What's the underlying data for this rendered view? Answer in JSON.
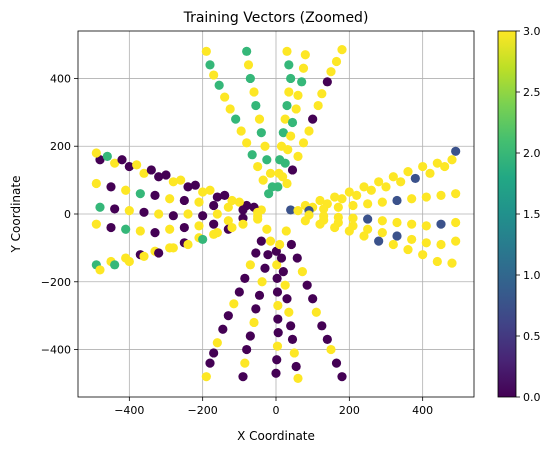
{
  "chart_data": {
    "type": "scatter",
    "title": "Training Vectors (Zoomed)",
    "xlabel": "X Coordinate",
    "ylabel": "Y Coordinate",
    "xlim": [
      -540,
      540
    ],
    "ylim": [
      -540,
      540
    ],
    "xticks": [
      -400,
      -200,
      0,
      200,
      400
    ],
    "xtick_labels": [
      "−400",
      "−200",
      "0",
      "200",
      "400"
    ],
    "yticks": [
      -400,
      -200,
      0,
      200,
      400
    ],
    "ytick_labels": [
      "−400",
      "−200",
      "0",
      "200",
      "400"
    ],
    "grid": true,
    "colormap": "viridis",
    "colorbar": {
      "range": [
        0,
        3
      ],
      "ticks": [
        0,
        0.5,
        1,
        1.5,
        2,
        2.5,
        3
      ],
      "tick_labels": [
        "0.0",
        "0.5",
        "1.0",
        "1.5",
        "2.0",
        "2.5",
        "3.0"
      ]
    },
    "colors": {
      "c0": "#440154",
      "c1": "#3b528b",
      "c2": "#21918c",
      "c25": "#35b779",
      "c3": "#fde725"
    },
    "points": [
      {
        "x": -480,
        "y": 160,
        "c": 0
      },
      {
        "x": -440,
        "y": 150,
        "c": 3
      },
      {
        "x": -400,
        "y": 140,
        "c": 0
      },
      {
        "x": -360,
        "y": 120,
        "c": 3
      },
      {
        "x": -320,
        "y": 110,
        "c": 0
      },
      {
        "x": -280,
        "y": 95,
        "c": 3
      },
      {
        "x": -240,
        "y": 80,
        "c": 0
      },
      {
        "x": -200,
        "y": 65,
        "c": 3
      },
      {
        "x": -160,
        "y": 50,
        "c": 0
      },
      {
        "x": -120,
        "y": 40,
        "c": 3
      },
      {
        "x": -80,
        "y": 25,
        "c": 0
      },
      {
        "x": -40,
        "y": 12,
        "c": 3
      },
      {
        "x": -490,
        "y": 180,
        "c": 3
      },
      {
        "x": -460,
        "y": 170,
        "c": 2.5
      },
      {
        "x": -420,
        "y": 160,
        "c": 0
      },
      {
        "x": -380,
        "y": 145,
        "c": 3
      },
      {
        "x": -340,
        "y": 130,
        "c": 0
      },
      {
        "x": -300,
        "y": 115,
        "c": 0
      },
      {
        "x": -260,
        "y": 100,
        "c": 3
      },
      {
        "x": -220,
        "y": 85,
        "c": 0
      },
      {
        "x": -180,
        "y": 70,
        "c": 3
      },
      {
        "x": -140,
        "y": 55,
        "c": 0
      },
      {
        "x": -100,
        "y": 35,
        "c": 3
      },
      {
        "x": -60,
        "y": 20,
        "c": 0
      },
      {
        "x": -490,
        "y": 90,
        "c": 3
      },
      {
        "x": -450,
        "y": 80,
        "c": 0
      },
      {
        "x": -410,
        "y": 70,
        "c": 3
      },
      {
        "x": -370,
        "y": 60,
        "c": 2.5
      },
      {
        "x": -330,
        "y": 55,
        "c": 0
      },
      {
        "x": -290,
        "y": 45,
        "c": 3
      },
      {
        "x": -250,
        "y": 40,
        "c": 0
      },
      {
        "x": -210,
        "y": 35,
        "c": 3
      },
      {
        "x": -170,
        "y": 25,
        "c": 0
      },
      {
        "x": -130,
        "y": 20,
        "c": 3
      },
      {
        "x": -90,
        "y": 12,
        "c": 0
      },
      {
        "x": -50,
        "y": 5,
        "c": 3
      },
      {
        "x": -480,
        "y": 20,
        "c": 2.5
      },
      {
        "x": -440,
        "y": 15,
        "c": 0
      },
      {
        "x": -400,
        "y": 10,
        "c": 3
      },
      {
        "x": -360,
        "y": 5,
        "c": 0
      },
      {
        "x": -320,
        "y": 0,
        "c": 3
      },
      {
        "x": -280,
        "y": -5,
        "c": 0
      },
      {
        "x": -240,
        "y": 0,
        "c": 3
      },
      {
        "x": -200,
        "y": -5,
        "c": 0
      },
      {
        "x": -160,
        "y": 0,
        "c": 3
      },
      {
        "x": -490,
        "y": -30,
        "c": 3
      },
      {
        "x": -450,
        "y": -40,
        "c": 0
      },
      {
        "x": -410,
        "y": -45,
        "c": 2.5
      },
      {
        "x": -370,
        "y": -50,
        "c": 3
      },
      {
        "x": -330,
        "y": -55,
        "c": 0
      },
      {
        "x": -290,
        "y": -45,
        "c": 3
      },
      {
        "x": -250,
        "y": -40,
        "c": 0
      },
      {
        "x": -210,
        "y": -35,
        "c": 3
      },
      {
        "x": -170,
        "y": -30,
        "c": 0
      },
      {
        "x": -130,
        "y": -20,
        "c": 3
      },
      {
        "x": -90,
        "y": -12,
        "c": 0
      },
      {
        "x": -50,
        "y": -6,
        "c": 3
      },
      {
        "x": -490,
        "y": -150,
        "c": 2.5
      },
      {
        "x": -450,
        "y": -140,
        "c": 3
      },
      {
        "x": -410,
        "y": -130,
        "c": 3
      },
      {
        "x": -370,
        "y": -120,
        "c": 0
      },
      {
        "x": -330,
        "y": -110,
        "c": 3
      },
      {
        "x": -290,
        "y": -100,
        "c": 3
      },
      {
        "x": -250,
        "y": -85,
        "c": 0
      },
      {
        "x": -210,
        "y": -70,
        "c": 3
      },
      {
        "x": -170,
        "y": -60,
        "c": 3
      },
      {
        "x": -130,
        "y": -45,
        "c": 0
      },
      {
        "x": -90,
        "y": -30,
        "c": 3
      },
      {
        "x": -50,
        "y": -15,
        "c": 3
      },
      {
        "x": -480,
        "y": -165,
        "c": 3
      },
      {
        "x": -440,
        "y": -150,
        "c": 2.5
      },
      {
        "x": -400,
        "y": -140,
        "c": 3
      },
      {
        "x": -360,
        "y": -125,
        "c": 3
      },
      {
        "x": -320,
        "y": -115,
        "c": 0
      },
      {
        "x": -280,
        "y": -100,
        "c": 3
      },
      {
        "x": -240,
        "y": -90,
        "c": 3
      },
      {
        "x": -200,
        "y": -75,
        "c": 2.5
      },
      {
        "x": -160,
        "y": -55,
        "c": 3
      },
      {
        "x": -120,
        "y": -40,
        "c": 3
      },
      {
        "x": 480,
        "y": 160,
        "c": 3
      },
      {
        "x": 440,
        "y": 150,
        "c": 3
      },
      {
        "x": 400,
        "y": 140,
        "c": 3
      },
      {
        "x": 360,
        "y": 125,
        "c": 3
      },
      {
        "x": 320,
        "y": 110,
        "c": 3
      },
      {
        "x": 280,
        "y": 95,
        "c": 3
      },
      {
        "x": 240,
        "y": 80,
        "c": 3
      },
      {
        "x": 200,
        "y": 65,
        "c": 3
      },
      {
        "x": 160,
        "y": 50,
        "c": 3
      },
      {
        "x": 120,
        "y": 40,
        "c": 3
      },
      {
        "x": 80,
        "y": 25,
        "c": 3
      },
      {
        "x": 40,
        "y": 12,
        "c": 1
      },
      {
        "x": 490,
        "y": 185,
        "c": 1
      },
      {
        "x": 460,
        "y": 140,
        "c": 3
      },
      {
        "x": 420,
        "y": 120,
        "c": 3
      },
      {
        "x": 380,
        "y": 105,
        "c": 1
      },
      {
        "x": 340,
        "y": 95,
        "c": 3
      },
      {
        "x": 300,
        "y": 80,
        "c": 3
      },
      {
        "x": 260,
        "y": 70,
        "c": 3
      },
      {
        "x": 220,
        "y": 55,
        "c": 3
      },
      {
        "x": 180,
        "y": 45,
        "c": 3
      },
      {
        "x": 140,
        "y": 30,
        "c": 3
      },
      {
        "x": 100,
        "y": 20,
        "c": 3
      },
      {
        "x": 60,
        "y": 10,
        "c": 3
      },
      {
        "x": 490,
        "y": 60,
        "c": 3
      },
      {
        "x": 450,
        "y": 55,
        "c": 3
      },
      {
        "x": 410,
        "y": 50,
        "c": 3
      },
      {
        "x": 370,
        "y": 45,
        "c": 3
      },
      {
        "x": 330,
        "y": 40,
        "c": 1
      },
      {
        "x": 290,
        "y": 35,
        "c": 3
      },
      {
        "x": 250,
        "y": 30,
        "c": 3
      },
      {
        "x": 210,
        "y": 25,
        "c": 3
      },
      {
        "x": 170,
        "y": 20,
        "c": 3
      },
      {
        "x": 130,
        "y": 15,
        "c": 3
      },
      {
        "x": 90,
        "y": 10,
        "c": 1
      },
      {
        "x": 490,
        "y": -25,
        "c": 3
      },
      {
        "x": 450,
        "y": -30,
        "c": 1
      },
      {
        "x": 410,
        "y": -35,
        "c": 3
      },
      {
        "x": 370,
        "y": -30,
        "c": 3
      },
      {
        "x": 330,
        "y": -25,
        "c": 3
      },
      {
        "x": 290,
        "y": -20,
        "c": 3
      },
      {
        "x": 250,
        "y": -15,
        "c": 1
      },
      {
        "x": 210,
        "y": -12,
        "c": 3
      },
      {
        "x": 170,
        "y": -10,
        "c": 3
      },
      {
        "x": 130,
        "y": -6,
        "c": 3
      },
      {
        "x": 90,
        "y": -3,
        "c": 3
      },
      {
        "x": 490,
        "y": -80,
        "c": 3
      },
      {
        "x": 450,
        "y": -90,
        "c": 3
      },
      {
        "x": 410,
        "y": -85,
        "c": 3
      },
      {
        "x": 370,
        "y": -75,
        "c": 3
      },
      {
        "x": 330,
        "y": -65,
        "c": 1
      },
      {
        "x": 290,
        "y": -55,
        "c": 3
      },
      {
        "x": 250,
        "y": -45,
        "c": 3
      },
      {
        "x": 210,
        "y": -35,
        "c": 3
      },
      {
        "x": 170,
        "y": -25,
        "c": 3
      },
      {
        "x": 130,
        "y": -18,
        "c": 3
      },
      {
        "x": 480,
        "y": -145,
        "c": 3
      },
      {
        "x": 440,
        "y": -140,
        "c": 3
      },
      {
        "x": 400,
        "y": -120,
        "c": 3
      },
      {
        "x": 360,
        "y": -105,
        "c": 3
      },
      {
        "x": 320,
        "y": -90,
        "c": 3
      },
      {
        "x": 280,
        "y": -80,
        "c": 1
      },
      {
        "x": 240,
        "y": -65,
        "c": 3
      },
      {
        "x": 200,
        "y": -50,
        "c": 3
      },
      {
        "x": 160,
        "y": -40,
        "c": 3
      },
      {
        "x": 120,
        "y": -30,
        "c": 3
      },
      {
        "x": 80,
        "y": -20,
        "c": 3
      },
      {
        "x": -190,
        "y": 480,
        "c": 3
      },
      {
        "x": -180,
        "y": 440,
        "c": 2.5
      },
      {
        "x": -170,
        "y": 410,
        "c": 3
      },
      {
        "x": -155,
        "y": 380,
        "c": 2.5
      },
      {
        "x": -140,
        "y": 345,
        "c": 3
      },
      {
        "x": -125,
        "y": 310,
        "c": 3
      },
      {
        "x": -110,
        "y": 280,
        "c": 2.5
      },
      {
        "x": -95,
        "y": 245,
        "c": 3
      },
      {
        "x": -80,
        "y": 210,
        "c": 3
      },
      {
        "x": -65,
        "y": 175,
        "c": 2.5
      },
      {
        "x": -50,
        "y": 140,
        "c": 3
      },
      {
        "x": -35,
        "y": 100,
        "c": 3
      },
      {
        "x": -20,
        "y": 60,
        "c": 2.5
      },
      {
        "x": -80,
        "y": 480,
        "c": 2.5
      },
      {
        "x": -75,
        "y": 440,
        "c": 3
      },
      {
        "x": -70,
        "y": 400,
        "c": 2.5
      },
      {
        "x": -60,
        "y": 360,
        "c": 3
      },
      {
        "x": -55,
        "y": 320,
        "c": 2.5
      },
      {
        "x": -45,
        "y": 280,
        "c": 3
      },
      {
        "x": -40,
        "y": 240,
        "c": 2.5
      },
      {
        "x": -30,
        "y": 200,
        "c": 3
      },
      {
        "x": -25,
        "y": 160,
        "c": 2.5
      },
      {
        "x": -15,
        "y": 120,
        "c": 3
      },
      {
        "x": -10,
        "y": 80,
        "c": 2.5
      },
      {
        "x": 30,
        "y": 480,
        "c": 3
      },
      {
        "x": 35,
        "y": 440,
        "c": 2.5
      },
      {
        "x": 40,
        "y": 400,
        "c": 2.5
      },
      {
        "x": 35,
        "y": 360,
        "c": 3
      },
      {
        "x": 30,
        "y": 320,
        "c": 2.5
      },
      {
        "x": 25,
        "y": 280,
        "c": 3
      },
      {
        "x": 20,
        "y": 240,
        "c": 2.5
      },
      {
        "x": 15,
        "y": 200,
        "c": 3
      },
      {
        "x": 10,
        "y": 160,
        "c": 2.5
      },
      {
        "x": 8,
        "y": 120,
        "c": 3
      },
      {
        "x": 5,
        "y": 80,
        "c": 2.5
      },
      {
        "x": 80,
        "y": 470,
        "c": 3
      },
      {
        "x": 75,
        "y": 430,
        "c": 3
      },
      {
        "x": 70,
        "y": 390,
        "c": 2.5
      },
      {
        "x": 60,
        "y": 350,
        "c": 3
      },
      {
        "x": 55,
        "y": 310,
        "c": 3
      },
      {
        "x": 45,
        "y": 270,
        "c": 2.5
      },
      {
        "x": 40,
        "y": 230,
        "c": 3
      },
      {
        "x": 32,
        "y": 190,
        "c": 3
      },
      {
        "x": 25,
        "y": 150,
        "c": 2.5
      },
      {
        "x": 18,
        "y": 110,
        "c": 3
      },
      {
        "x": 180,
        "y": 485,
        "c": 3
      },
      {
        "x": 165,
        "y": 450,
        "c": 3
      },
      {
        "x": 150,
        "y": 420,
        "c": 3
      },
      {
        "x": 140,
        "y": 390,
        "c": 0
      },
      {
        "x": 125,
        "y": 355,
        "c": 3
      },
      {
        "x": 115,
        "y": 320,
        "c": 3
      },
      {
        "x": 100,
        "y": 280,
        "c": 0
      },
      {
        "x": 90,
        "y": 245,
        "c": 3
      },
      {
        "x": 75,
        "y": 210,
        "c": 3
      },
      {
        "x": 60,
        "y": 170,
        "c": 3
      },
      {
        "x": 45,
        "y": 130,
        "c": 0
      },
      {
        "x": 30,
        "y": 90,
        "c": 3
      },
      {
        "x": -190,
        "y": -480,
        "c": 3
      },
      {
        "x": -180,
        "y": -440,
        "c": 0
      },
      {
        "x": -170,
        "y": -410,
        "c": 0
      },
      {
        "x": -160,
        "y": -380,
        "c": 3
      },
      {
        "x": -145,
        "y": -340,
        "c": 0
      },
      {
        "x": -130,
        "y": -300,
        "c": 0
      },
      {
        "x": -115,
        "y": -265,
        "c": 3
      },
      {
        "x": -100,
        "y": -230,
        "c": 0
      },
      {
        "x": -85,
        "y": -190,
        "c": 0
      },
      {
        "x": -70,
        "y": -150,
        "c": 3
      },
      {
        "x": -55,
        "y": -115,
        "c": 0
      },
      {
        "x": -40,
        "y": -80,
        "c": 0
      },
      {
        "x": -25,
        "y": -45,
        "c": 3
      },
      {
        "x": -90,
        "y": -480,
        "c": 0
      },
      {
        "x": -85,
        "y": -440,
        "c": 3
      },
      {
        "x": -80,
        "y": -400,
        "c": 0
      },
      {
        "x": -70,
        "y": -360,
        "c": 0
      },
      {
        "x": -60,
        "y": -320,
        "c": 3
      },
      {
        "x": -55,
        "y": -280,
        "c": 0
      },
      {
        "x": -45,
        "y": -240,
        "c": 0
      },
      {
        "x": -38,
        "y": -200,
        "c": 3
      },
      {
        "x": -30,
        "y": -160,
        "c": 0
      },
      {
        "x": -22,
        "y": -120,
        "c": 0
      },
      {
        "x": -15,
        "y": -80,
        "c": 3
      },
      {
        "x": 0,
        "y": -470,
        "c": 0
      },
      {
        "x": 2,
        "y": -430,
        "c": 0
      },
      {
        "x": 4,
        "y": -390,
        "c": 3
      },
      {
        "x": 6,
        "y": -350,
        "c": 0
      },
      {
        "x": 5,
        "y": -310,
        "c": 0
      },
      {
        "x": 5,
        "y": -270,
        "c": 3
      },
      {
        "x": 4,
        "y": -230,
        "c": 0
      },
      {
        "x": 3,
        "y": -190,
        "c": 0
      },
      {
        "x": 2,
        "y": -150,
        "c": 3
      },
      {
        "x": 1,
        "y": -110,
        "c": 0
      },
      {
        "x": 60,
        "y": -485,
        "c": 3
      },
      {
        "x": 55,
        "y": -450,
        "c": 0
      },
      {
        "x": 50,
        "y": -410,
        "c": 3
      },
      {
        "x": 45,
        "y": -370,
        "c": 0
      },
      {
        "x": 40,
        "y": -330,
        "c": 0
      },
      {
        "x": 35,
        "y": -290,
        "c": 3
      },
      {
        "x": 30,
        "y": -250,
        "c": 0
      },
      {
        "x": 25,
        "y": -210,
        "c": 3
      },
      {
        "x": 20,
        "y": -170,
        "c": 0
      },
      {
        "x": 15,
        "y": -130,
        "c": 0
      },
      {
        "x": 10,
        "y": -90,
        "c": 3
      },
      {
        "x": 180,
        "y": -480,
        "c": 0
      },
      {
        "x": 165,
        "y": -440,
        "c": 0
      },
      {
        "x": 150,
        "y": -400,
        "c": 3
      },
      {
        "x": 140,
        "y": -370,
        "c": 0
      },
      {
        "x": 125,
        "y": -330,
        "c": 0
      },
      {
        "x": 110,
        "y": -290,
        "c": 3
      },
      {
        "x": 100,
        "y": -250,
        "c": 0
      },
      {
        "x": 85,
        "y": -210,
        "c": 0
      },
      {
        "x": 72,
        "y": -170,
        "c": 3
      },
      {
        "x": 58,
        "y": -130,
        "c": 0
      },
      {
        "x": 42,
        "y": -90,
        "c": 0
      },
      {
        "x": 28,
        "y": -50,
        "c": 3
      }
    ]
  }
}
